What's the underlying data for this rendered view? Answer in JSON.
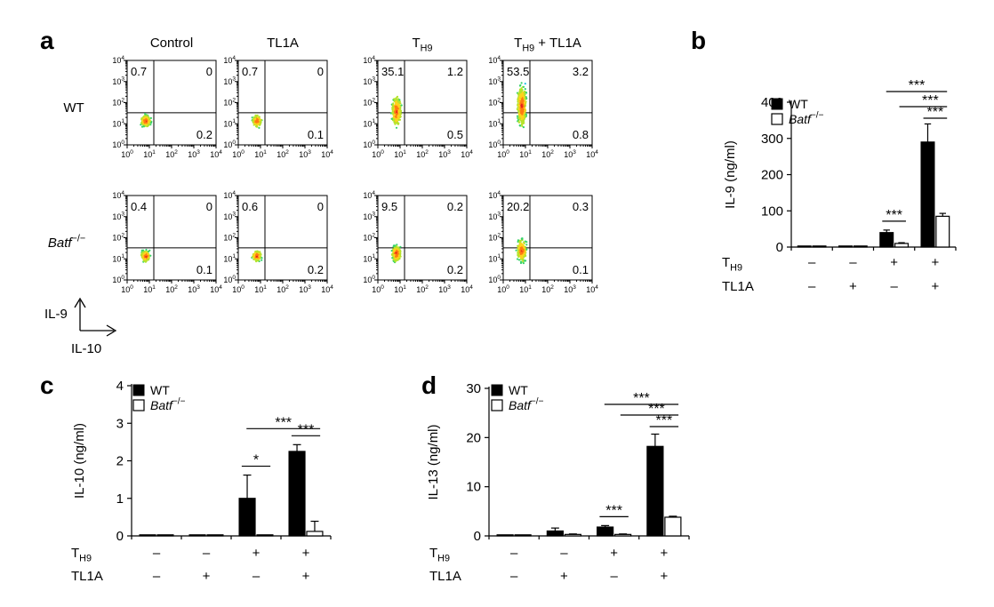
{
  "panel_letters": [
    "a",
    "b",
    "c",
    "d"
  ],
  "flow": {
    "conditions": [
      "Control",
      "TL1A",
      "T_H9",
      "T_H9 + TL1A"
    ],
    "genotypes": [
      "WT",
      "Batf−/−"
    ],
    "y_axis_label": "IL-9",
    "x_axis_label": "IL-10",
    "tick_labels": [
      "10^0",
      "10^1",
      "10^2",
      "10^3",
      "10^4"
    ],
    "quadrants": [
      [
        {
          "ul": "0.7",
          "ur": "0",
          "lr": "0.2"
        },
        {
          "ul": "0.7",
          "ur": "0",
          "lr": "0.1"
        },
        {
          "ul": "35.1",
          "ur": "1.2",
          "lr": "0.5"
        },
        {
          "ul": "53.5",
          "ur": "3.2",
          "lr": "0.8"
        }
      ],
      [
        {
          "ul": "0.4",
          "ur": "0",
          "lr": "0.1"
        },
        {
          "ul": "0.6",
          "ur": "0",
          "lr": "0.2"
        },
        {
          "ul": "9.5",
          "ur": "0.2",
          "lr": "0.2"
        },
        {
          "ul": "20.2",
          "ur": "0.3",
          "lr": "0.1"
        }
      ]
    ]
  },
  "treatment_rows": [
    {
      "label": "T_H9",
      "values": [
        "–",
        "–",
        "+",
        "+"
      ]
    },
    {
      "label": "TL1A",
      "values": [
        "–",
        "+",
        "–",
        "+"
      ]
    }
  ],
  "legend": [
    "WT",
    "Batf−/−"
  ],
  "chart_data": [
    {
      "panel": "b",
      "type": "bar",
      "ylabel": "IL-9 (ng/ml)",
      "ylim": [
        0,
        400
      ],
      "yticks": [
        0,
        100,
        200,
        300,
        400
      ],
      "groups": 4,
      "series": [
        {
          "name": "WT",
          "values": [
            0,
            0,
            40,
            290
          ],
          "errors": [
            0,
            0,
            7,
            50
          ]
        },
        {
          "name": "Batf−/−",
          "values": [
            0,
            0,
            10,
            85
          ],
          "errors": [
            0,
            0,
            2,
            8
          ]
        }
      ],
      "significance": [
        "***",
        "***",
        "***",
        "***"
      ]
    },
    {
      "panel": "c",
      "type": "bar",
      "ylabel": "IL-10 (ng/ml)",
      "ylim": [
        0,
        4
      ],
      "yticks": [
        0,
        1,
        2,
        3,
        4
      ],
      "groups": 4,
      "series": [
        {
          "name": "WT",
          "values": [
            0,
            0,
            1.0,
            2.25
          ],
          "errors": [
            0,
            0,
            0.62,
            0.18
          ]
        },
        {
          "name": "Batf−/−",
          "values": [
            0,
            0,
            0,
            0.12
          ],
          "errors": [
            0,
            0,
            0,
            0.27
          ]
        }
      ],
      "significance": [
        "*",
        "***",
        "***"
      ]
    },
    {
      "panel": "d",
      "type": "bar",
      "ylabel": "IL-13 (ng/ml)",
      "ylim": [
        0,
        30
      ],
      "yticks": [
        0,
        10,
        20,
        30
      ],
      "groups": 4,
      "series": [
        {
          "name": "WT",
          "values": [
            0,
            1.0,
            1.8,
            18.2
          ],
          "errors": [
            0,
            0.6,
            0.3,
            2.5
          ]
        },
        {
          "name": "Batf−/−",
          "values": [
            0,
            0.3,
            0.3,
            3.8
          ],
          "errors": [
            0,
            0.1,
            0.1,
            0.2
          ]
        }
      ],
      "significance": [
        "***",
        "***",
        "***",
        "***"
      ]
    }
  ]
}
